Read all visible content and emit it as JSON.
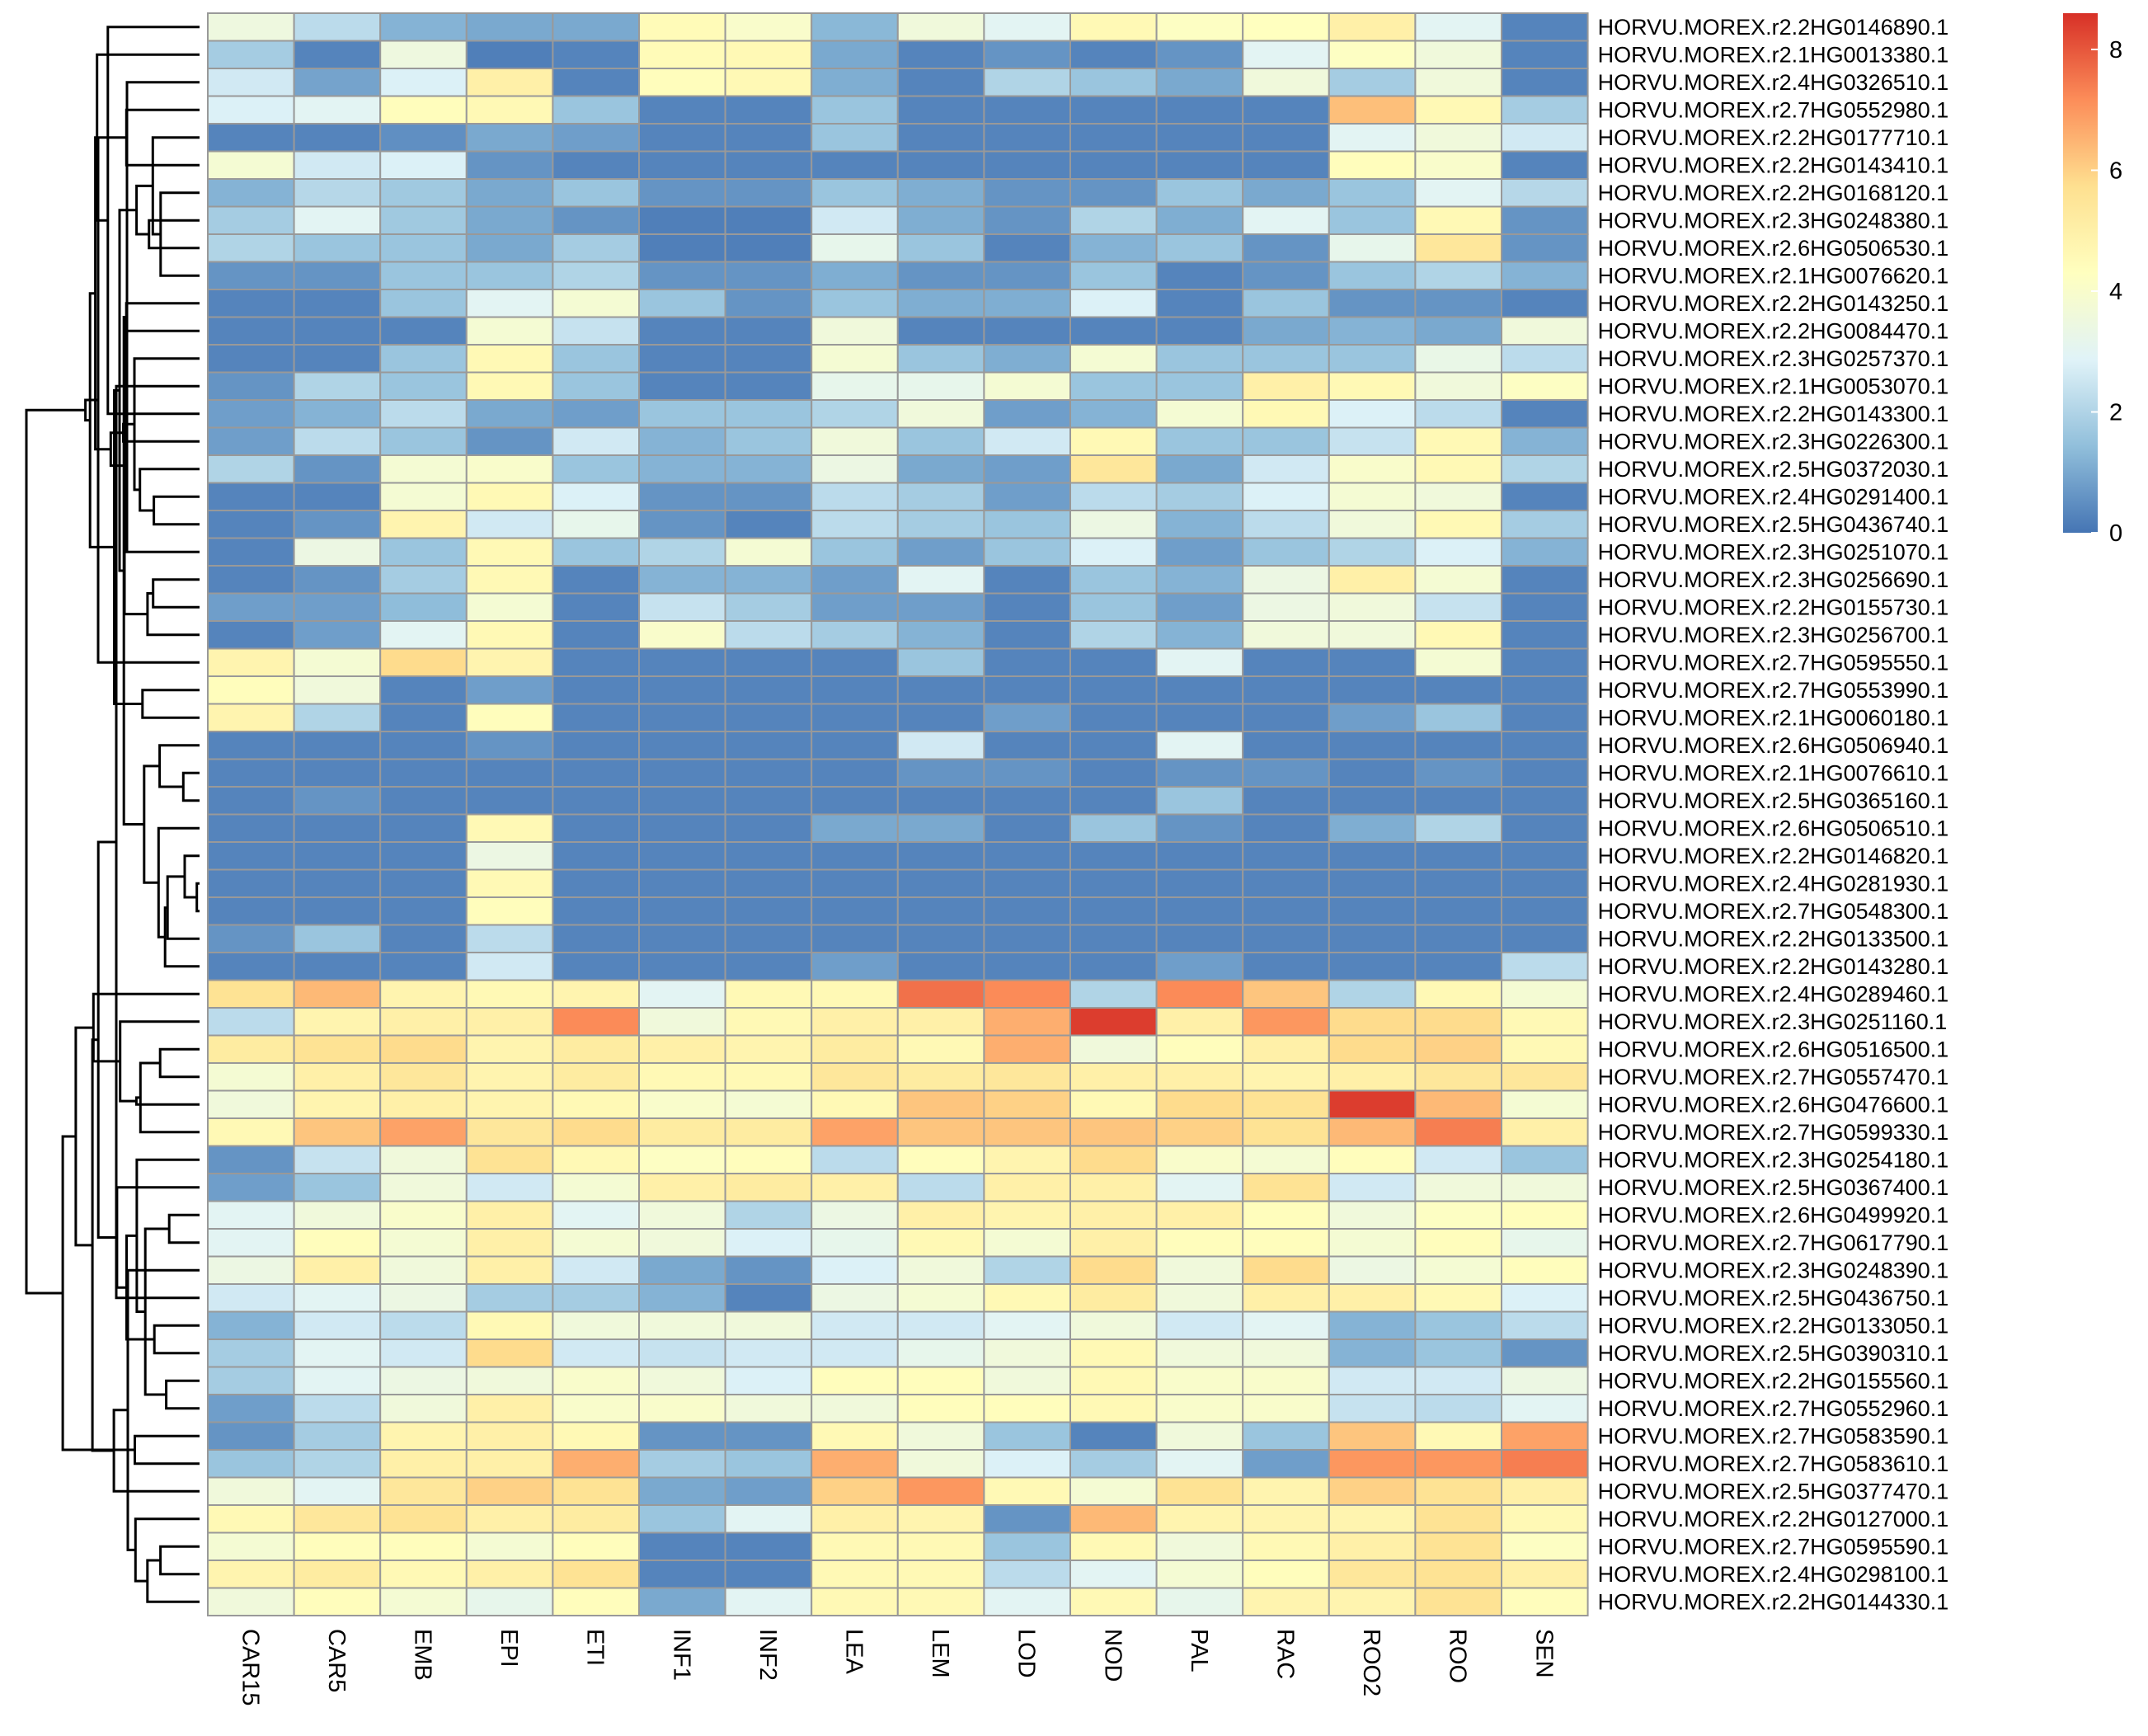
{
  "chart_data": {
    "type": "heatmap",
    "title": "",
    "xlabel": "",
    "ylabel": "",
    "columns": [
      "CAR15",
      "CAR5",
      "EMB",
      "EPI",
      "ETI",
      "INF1",
      "INF2",
      "LEA",
      "LEM",
      "LOD",
      "NOD",
      "PAL",
      "RAC",
      "ROO2",
      "ROO",
      "SEN"
    ],
    "rows": [
      "HORVU.MOREX.r2.2HG0146890.1",
      "HORVU.MOREX.r2.1HG0013380.1",
      "HORVU.MOREX.r2.4HG0326510.1",
      "HORVU.MOREX.r2.7HG0552980.1",
      "HORVU.MOREX.r2.2HG0177710.1",
      "HORVU.MOREX.r2.2HG0143410.1",
      "HORVU.MOREX.r2.2HG0168120.1",
      "HORVU.MOREX.r2.3HG0248380.1",
      "HORVU.MOREX.r2.6HG0506530.1",
      "HORVU.MOREX.r2.1HG0076620.1",
      "HORVU.MOREX.r2.2HG0143250.1",
      "HORVU.MOREX.r2.2HG0084470.1",
      "HORVU.MOREX.r2.3HG0257370.1",
      "HORVU.MOREX.r2.1HG0053070.1",
      "HORVU.MOREX.r2.2HG0143300.1",
      "HORVU.MOREX.r2.3HG0226300.1",
      "HORVU.MOREX.r2.5HG0372030.1",
      "HORVU.MOREX.r2.4HG0291400.1",
      "HORVU.MOREX.r2.5HG0436740.1",
      "HORVU.MOREX.r2.3HG0251070.1",
      "HORVU.MOREX.r2.3HG0256690.1",
      "HORVU.MOREX.r2.2HG0155730.1",
      "HORVU.MOREX.r2.3HG0256700.1",
      "HORVU.MOREX.r2.7HG0595550.1",
      "HORVU.MOREX.r2.7HG0553990.1",
      "HORVU.MOREX.r2.1HG0060180.1",
      "HORVU.MOREX.r2.6HG0506940.1",
      "HORVU.MOREX.r2.1HG0076610.1",
      "HORVU.MOREX.r2.5HG0365160.1",
      "HORVU.MOREX.r2.6HG0506510.1",
      "HORVU.MOREX.r2.2HG0146820.1",
      "HORVU.MOREX.r2.4HG0281930.1",
      "HORVU.MOREX.r2.7HG0548300.1",
      "HORVU.MOREX.r2.2HG0133500.1",
      "HORVU.MOREX.r2.2HG0143280.1",
      "HORVU.MOREX.r2.4HG0289460.1",
      "HORVU.MOREX.r2.3HG0251160.1",
      "HORVU.MOREX.r2.6HG0516500.1",
      "HORVU.MOREX.r2.7HG0557470.1",
      "HORVU.MOREX.r2.6HG0476600.1",
      "HORVU.MOREX.r2.7HG0599330.1",
      "HORVU.MOREX.r2.3HG0254180.1",
      "HORVU.MOREX.r2.5HG0367400.1",
      "HORVU.MOREX.r2.6HG0499920.1",
      "HORVU.MOREX.r2.7HG0617790.1",
      "HORVU.MOREX.r2.3HG0248390.1",
      "HORVU.MOREX.r2.5HG0436750.1",
      "HORVU.MOREX.r2.2HG0133050.1",
      "HORVU.MOREX.r2.5HG0390310.1",
      "HORVU.MOREX.r2.2HG0155560.1",
      "HORVU.MOREX.r2.7HG0552960.1",
      "HORVU.MOREX.r2.7HG0583590.1",
      "HORVU.MOREX.r2.7HG0583610.1",
      "HORVU.MOREX.r2.5HG0377470.1",
      "HORVU.MOREX.r2.2HG0127000.1",
      "HORVU.MOREX.r2.7HG0595590.1",
      "HORVU.MOREX.r2.4HG0298100.1",
      "HORVU.MOREX.r2.2HG0144330.1"
    ],
    "values": [
      [
        3.5,
        2.2,
        1.2,
        1.0,
        1.0,
        4.5,
        4.0,
        1.3,
        3.6,
        3.0,
        4.6,
        4.2,
        4.3,
        5.0,
        3.0,
        0.3
      ],
      [
        1.8,
        0.3,
        3.5,
        0.2,
        0.3,
        4.5,
        4.6,
        1.0,
        0.3,
        0.6,
        0.3,
        0.6,
        3.0,
        4.2,
        3.6,
        0.3
      ],
      [
        2.6,
        0.9,
        2.8,
        5.0,
        0.3,
        4.4,
        4.6,
        1.1,
        0.3,
        2.0,
        1.6,
        1.0,
        3.6,
        1.8,
        3.6,
        0.3
      ],
      [
        2.8,
        3.0,
        4.4,
        4.6,
        1.6,
        0.3,
        0.3,
        1.6,
        0.3,
        0.3,
        0.3,
        0.3,
        0.3,
        6.3,
        4.6,
        1.8
      ],
      [
        0.3,
        0.3,
        0.5,
        1.0,
        0.8,
        0.3,
        0.3,
        1.6,
        0.3,
        0.3,
        0.3,
        0.3,
        0.3,
        3.0,
        3.6,
        2.6
      ],
      [
        3.8,
        2.6,
        2.8,
        0.6,
        0.3,
        0.3,
        0.3,
        0.3,
        0.3,
        0.3,
        0.3,
        0.3,
        0.3,
        4.4,
        4.0,
        0.3
      ],
      [
        1.2,
        2.1,
        1.7,
        1.0,
        1.6,
        0.6,
        0.6,
        1.6,
        1.1,
        0.6,
        0.6,
        1.6,
        1.0,
        1.6,
        3.0,
        2.1
      ],
      [
        1.8,
        3.0,
        1.7,
        1.0,
        0.6,
        0.2,
        0.2,
        2.6,
        1.1,
        0.6,
        2.0,
        1.1,
        3.0,
        1.6,
        4.6,
        0.6
      ],
      [
        2.0,
        1.6,
        1.6,
        1.0,
        1.8,
        0.2,
        0.2,
        3.2,
        1.6,
        0.3,
        1.2,
        1.6,
        0.6,
        3.2,
        5.4,
        0.6
      ],
      [
        0.6,
        0.6,
        1.6,
        1.6,
        2.0,
        0.6,
        0.6,
        1.1,
        0.6,
        0.6,
        1.6,
        0.3,
        0.6,
        1.6,
        2.0,
        1.2
      ],
      [
        0.3,
        0.3,
        1.6,
        3.0,
        3.8,
        1.6,
        0.6,
        1.6,
        1.1,
        1.1,
        2.8,
        0.3,
        1.6,
        0.6,
        0.6,
        0.3
      ],
      [
        0.3,
        0.3,
        0.3,
        3.8,
        2.4,
        0.3,
        0.3,
        3.6,
        0.3,
        0.3,
        0.3,
        0.3,
        1.0,
        1.2,
        1.0,
        3.6
      ],
      [
        0.3,
        0.3,
        1.6,
        4.6,
        1.6,
        0.3,
        0.3,
        3.8,
        1.6,
        1.1,
        3.8,
        1.6,
        1.6,
        1.6,
        3.3,
        2.2
      ],
      [
        0.6,
        2.0,
        1.6,
        4.6,
        1.6,
        0.3,
        0.3,
        3.2,
        3.2,
        3.8,
        1.6,
        1.6,
        5.0,
        4.6,
        3.6,
        4.2
      ],
      [
        0.8,
        1.2,
        2.2,
        1.0,
        0.8,
        1.6,
        1.6,
        2.0,
        3.6,
        0.8,
        1.2,
        3.8,
        4.6,
        2.8,
        2.2,
        0.3
      ],
      [
        0.8,
        2.2,
        1.6,
        0.6,
        2.6,
        1.2,
        1.6,
        3.6,
        1.6,
        2.6,
        4.6,
        1.6,
        1.6,
        2.4,
        4.6,
        1.2
      ],
      [
        2.0,
        0.6,
        3.8,
        4.0,
        1.6,
        1.2,
        1.2,
        3.4,
        1.0,
        0.8,
        5.4,
        1.0,
        2.6,
        4.0,
        4.6,
        2.0
      ],
      [
        0.3,
        0.3,
        3.8,
        4.6,
        2.8,
        0.6,
        0.6,
        2.2,
        1.8,
        0.8,
        2.2,
        1.8,
        2.8,
        3.8,
        3.6,
        0.3
      ],
      [
        0.3,
        0.6,
        4.8,
        2.6,
        3.2,
        0.6,
        0.3,
        2.2,
        1.8,
        1.6,
        3.4,
        1.2,
        2.2,
        3.6,
        4.6,
        1.8
      ],
      [
        0.3,
        3.4,
        1.6,
        4.6,
        1.6,
        2.0,
        3.8,
        1.6,
        0.8,
        1.6,
        2.8,
        0.8,
        1.6,
        2.0,
        2.8,
        1.2
      ],
      [
        0.3,
        0.6,
        1.8,
        4.6,
        0.3,
        1.2,
        1.2,
        0.8,
        3.0,
        0.3,
        1.6,
        1.2,
        3.4,
        5.0,
        3.8,
        0.3
      ],
      [
        0.8,
        0.8,
        1.4,
        3.8,
        0.3,
        2.4,
        1.8,
        0.8,
        0.8,
        0.3,
        1.6,
        0.8,
        3.4,
        3.6,
        2.4,
        0.3
      ],
      [
        0.3,
        0.8,
        3.0,
        4.6,
        0.3,
        4.0,
        2.2,
        1.8,
        1.2,
        0.3,
        2.0,
        1.2,
        3.6,
        3.6,
        4.6,
        0.3
      ],
      [
        4.8,
        3.8,
        5.8,
        4.8,
        0.3,
        0.3,
        0.3,
        0.3,
        1.6,
        0.3,
        0.3,
        3.0,
        0.3,
        0.3,
        3.8,
        0.3
      ],
      [
        4.4,
        3.6,
        0.3,
        0.8,
        0.3,
        0.3,
        0.3,
        0.3,
        0.3,
        0.3,
        0.3,
        0.3,
        0.3,
        0.3,
        0.3,
        0.3
      ],
      [
        4.8,
        2.0,
        0.3,
        4.4,
        0.3,
        0.3,
        0.3,
        0.3,
        0.3,
        0.8,
        0.3,
        0.3,
        0.3,
        0.8,
        1.6,
        0.3
      ],
      [
        0.3,
        0.3,
        0.3,
        0.6,
        0.3,
        0.3,
        0.3,
        0.3,
        2.6,
        0.3,
        0.3,
        3.0,
        0.3,
        0.3,
        0.3,
        0.3
      ],
      [
        0.3,
        0.3,
        0.3,
        0.3,
        0.3,
        0.3,
        0.3,
        0.3,
        0.6,
        0.6,
        0.3,
        0.6,
        0.6,
        0.3,
        0.6,
        0.3
      ],
      [
        0.3,
        0.6,
        0.3,
        0.3,
        0.3,
        0.3,
        0.3,
        0.3,
        0.3,
        0.3,
        0.3,
        1.6,
        0.3,
        0.3,
        0.3,
        0.3
      ],
      [
        0.3,
        0.3,
        0.3,
        4.6,
        0.3,
        0.3,
        0.3,
        1.0,
        1.0,
        0.3,
        1.6,
        0.6,
        0.3,
        1.1,
        2.0,
        0.3
      ],
      [
        0.3,
        0.3,
        0.3,
        3.4,
        0.3,
        0.3,
        0.3,
        0.3,
        0.3,
        0.3,
        0.3,
        0.3,
        0.3,
        0.3,
        0.3,
        0.3
      ],
      [
        0.3,
        0.3,
        0.3,
        4.6,
        0.3,
        0.3,
        0.3,
        0.3,
        0.3,
        0.3,
        0.3,
        0.3,
        0.3,
        0.3,
        0.3,
        0.3
      ],
      [
        0.3,
        0.3,
        0.3,
        4.4,
        0.3,
        0.3,
        0.3,
        0.3,
        0.3,
        0.3,
        0.3,
        0.3,
        0.3,
        0.3,
        0.3,
        0.3
      ],
      [
        0.6,
        1.6,
        0.3,
        2.2,
        0.3,
        0.3,
        0.3,
        0.3,
        0.3,
        0.3,
        0.3,
        0.3,
        0.3,
        0.3,
        0.3,
        0.3
      ],
      [
        0.3,
        0.3,
        0.3,
        2.6,
        0.3,
        0.3,
        0.3,
        0.8,
        0.3,
        0.3,
        0.3,
        0.8,
        0.3,
        0.3,
        0.3,
        2.2
      ],
      [
        5.6,
        6.4,
        4.8,
        4.6,
        4.8,
        3.0,
        4.6,
        4.6,
        7.6,
        7.2,
        2.0,
        7.2,
        6.2,
        2.0,
        4.6,
        3.8
      ],
      [
        2.2,
        4.8,
        5.0,
        5.0,
        7.2,
        3.6,
        4.6,
        5.0,
        5.0,
        6.6,
        8.4,
        5.0,
        7.0,
        5.8,
        5.8,
        4.6
      ],
      [
        5.2,
        5.6,
        5.8,
        4.8,
        5.2,
        5.0,
        4.8,
        5.2,
        4.6,
        6.6,
        3.6,
        4.4,
        5.0,
        5.8,
        6.0,
        4.6
      ],
      [
        3.8,
        5.0,
        5.4,
        4.8,
        5.2,
        4.6,
        4.6,
        5.4,
        5.2,
        5.4,
        5.0,
        5.0,
        4.8,
        5.0,
        5.4,
        5.4
      ],
      [
        3.6,
        4.8,
        5.0,
        4.8,
        4.6,
        4.0,
        3.8,
        4.6,
        6.2,
        6.0,
        4.6,
        5.8,
        5.6,
        8.4,
        6.4,
        3.8
      ],
      [
        4.6,
        6.2,
        6.8,
        5.4,
        5.8,
        5.2,
        5.2,
        6.8,
        6.2,
        6.2,
        6.2,
        6.0,
        5.6,
        6.4,
        7.4,
        5.0
      ],
      [
        0.6,
        2.4,
        3.6,
        5.6,
        4.6,
        4.2,
        4.4,
        2.2,
        4.4,
        4.8,
        5.8,
        4.0,
        3.8,
        4.4,
        2.6,
        1.6
      ],
      [
        0.8,
        1.6,
        3.6,
        2.6,
        3.8,
        5.0,
        5.2,
        5.0,
        2.2,
        5.0,
        5.0,
        3.0,
        5.6,
        2.6,
        3.6,
        3.6
      ],
      [
        3.0,
        3.6,
        4.0,
        5.0,
        3.0,
        3.6,
        2.0,
        3.4,
        5.0,
        4.8,
        5.0,
        5.0,
        4.4,
        3.6,
        4.2,
        4.4
      ],
      [
        3.0,
        4.4,
        3.8,
        5.0,
        3.8,
        3.6,
        2.8,
        3.2,
        4.6,
        3.8,
        5.0,
        4.4,
        4.4,
        3.8,
        4.4,
        3.2
      ],
      [
        3.4,
        5.0,
        3.6,
        5.0,
        2.6,
        1.0,
        0.6,
        2.8,
        3.6,
        2.0,
        5.8,
        3.6,
        5.8,
        3.4,
        3.8,
        4.4
      ],
      [
        2.6,
        3.0,
        3.4,
        1.8,
        1.8,
        1.2,
        0.3,
        3.4,
        3.8,
        4.6,
        5.2,
        3.6,
        5.0,
        5.0,
        4.6,
        2.8
      ],
      [
        1.2,
        2.6,
        2.2,
        4.6,
        3.6,
        3.6,
        3.6,
        2.6,
        2.6,
        3.0,
        3.6,
        2.6,
        3.0,
        1.2,
        1.6,
        2.2
      ],
      [
        1.8,
        3.0,
        2.6,
        5.8,
        2.6,
        2.4,
        2.6,
        2.6,
        3.2,
        3.6,
        4.6,
        3.6,
        3.6,
        1.2,
        1.6,
        0.6
      ],
      [
        1.8,
        3.0,
        3.4,
        3.6,
        4.0,
        3.6,
        2.8,
        4.4,
        4.4,
        3.6,
        4.6,
        4.0,
        4.0,
        2.6,
        2.6,
        3.4
      ],
      [
        0.8,
        2.2,
        3.6,
        5.0,
        4.0,
        4.0,
        3.6,
        3.6,
        4.4,
        4.4,
        4.6,
        4.0,
        4.0,
        2.4,
        2.2,
        3.0
      ],
      [
        0.6,
        1.8,
        4.8,
        5.0,
        4.6,
        0.6,
        0.6,
        4.6,
        3.6,
        1.6,
        0.3,
        3.6,
        1.6,
        6.2,
        4.6,
        6.8
      ],
      [
        1.6,
        2.0,
        5.0,
        5.0,
        6.6,
        1.8,
        1.6,
        6.6,
        3.6,
        2.8,
        1.8,
        3.0,
        0.8,
        7.0,
        7.0,
        7.4
      ],
      [
        3.6,
        3.0,
        5.4,
        6.0,
        5.6,
        1.0,
        0.8,
        6.0,
        7.0,
        4.6,
        3.8,
        5.6,
        4.8,
        6.0,
        5.6,
        5.0
      ],
      [
        4.6,
        5.4,
        5.6,
        5.0,
        5.2,
        1.6,
        3.0,
        5.0,
        4.8,
        0.6,
        6.4,
        4.8,
        4.8,
        4.8,
        5.6,
        4.6
      ],
      [
        3.8,
        4.4,
        4.4,
        3.8,
        4.4,
        0.3,
        0.3,
        4.6,
        4.6,
        1.6,
        4.6,
        3.6,
        4.6,
        5.0,
        5.6,
        4.2
      ],
      [
        4.8,
        5.2,
        4.6,
        5.0,
        5.6,
        0.3,
        0.3,
        4.6,
        4.6,
        2.2,
        3.0,
        3.8,
        4.4,
        5.4,
        5.6,
        5.0
      ],
      [
        3.6,
        4.4,
        3.8,
        3.2,
        4.4,
        1.0,
        3.0,
        4.6,
        4.6,
        3.0,
        4.6,
        3.2,
        4.8,
        4.8,
        5.6,
        4.4
      ]
    ],
    "colorbar": {
      "min": 0,
      "max": 8.6,
      "ticks": [
        0,
        2,
        4,
        6,
        8
      ],
      "colors": [
        "#4575b4",
        "#91bfdb",
        "#e0f3f8",
        "#ffffbf",
        "#fee090",
        "#fc8d59",
        "#d73027"
      ]
    },
    "row_dendrogram": true,
    "cell_border_color": "#999999"
  }
}
